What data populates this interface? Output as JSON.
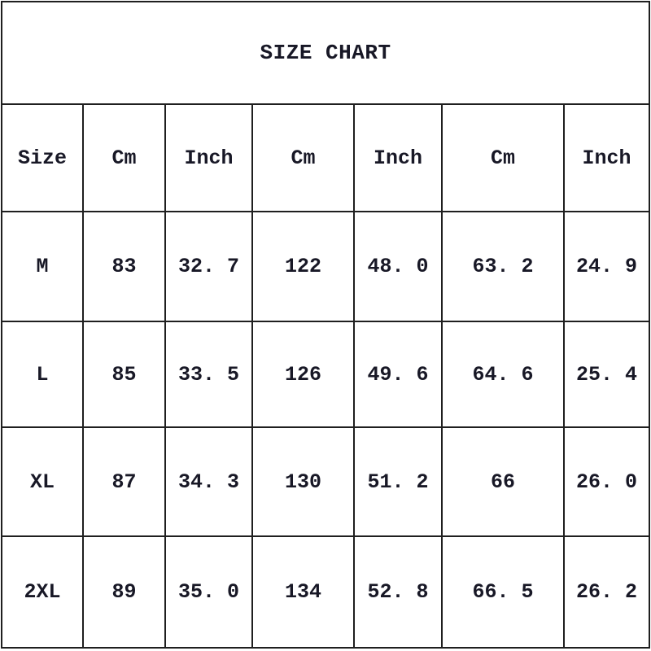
{
  "page": {
    "background": "#ffffff",
    "border_color": "#1f1f1f",
    "text_color": "#181826"
  },
  "size_chart": {
    "title": "SIZE CHART",
    "columns": [
      "Size",
      "Cm",
      "Inch",
      "Cm",
      "Inch",
      "Cm",
      "Inch"
    ],
    "rows": [
      {
        "size": "M",
        "display": [
          "83",
          "32. 7",
          "122",
          "48. 0",
          "63. 2",
          "24. 9"
        ]
      },
      {
        "size": "L",
        "display": [
          "85",
          "33. 5",
          "126",
          "49. 6",
          "64. 6",
          "25. 4"
        ]
      },
      {
        "size": "XL",
        "display": [
          "87",
          "34. 3",
          "130",
          "51. 2",
          "66",
          "26. 0"
        ]
      },
      {
        "size": "2XL",
        "display": [
          "89",
          "35. 0",
          "134",
          "52. 8",
          "66. 5",
          "26. 2"
        ]
      }
    ]
  },
  "chart_data": {
    "type": "table",
    "title": "SIZE CHART",
    "columns": [
      "Size",
      "Cm",
      "Inch",
      "Cm",
      "Inch",
      "Cm",
      "Inch"
    ],
    "rows": [
      [
        "M",
        83,
        32.7,
        122,
        48.0,
        63.2,
        24.9
      ],
      [
        "L",
        85,
        33.5,
        126,
        49.6,
        64.6,
        25.4
      ],
      [
        "XL",
        87,
        34.3,
        130,
        51.2,
        66,
        26.0
      ],
      [
        "2XL",
        89,
        35.0,
        134,
        52.8,
        66.5,
        26.2
      ]
    ],
    "layout": {
      "grid": true,
      "title_position": "top-center-spanning-row"
    }
  }
}
